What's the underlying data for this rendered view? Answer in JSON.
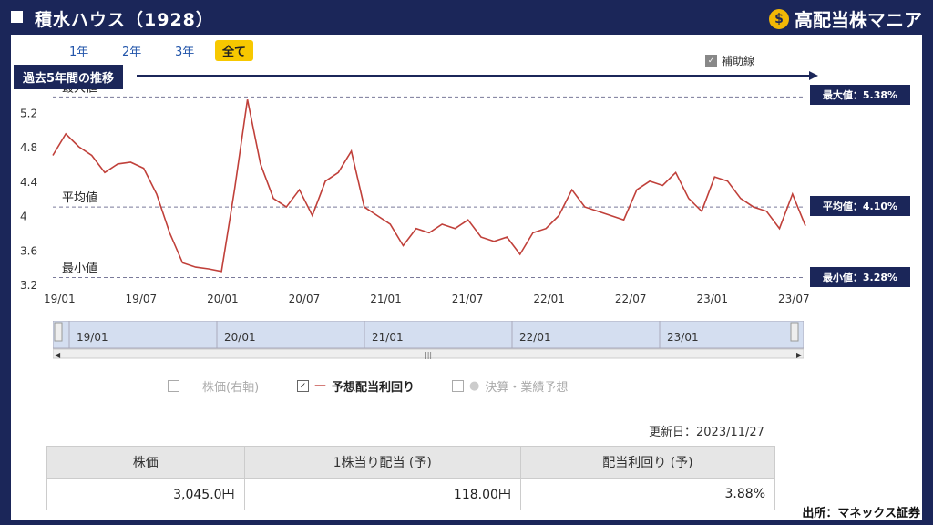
{
  "header": {
    "title": "積水ハウス（1928）",
    "brand": "高配当株マニア",
    "brand_icon": "money-bag-icon"
  },
  "tabs": [
    {
      "label": "1年"
    },
    {
      "label": "2年"
    },
    {
      "label": "3年"
    },
    {
      "label": "全て",
      "active": true
    }
  ],
  "aux_line": {
    "label": "補助線",
    "checked": true
  },
  "period_badge": "過去5年間の推移",
  "ref_lines": {
    "max_label": "最大値",
    "avg_label": "平均値",
    "min_label": "最小値",
    "max_tag": "最大値：5.38%",
    "avg_tag": "平均値：4.10%",
    "min_tag": "最小値：3.28%"
  },
  "navigator": {
    "labels": [
      "19/01",
      "20/01",
      "21/01",
      "22/01",
      "23/01"
    ]
  },
  "legend": [
    {
      "label": "株価(右軸)",
      "checked": false,
      "active": false
    },
    {
      "label": "予想配当利回り",
      "checked": true,
      "active": true
    },
    {
      "label": "決算・業績予想",
      "checked": false,
      "active": false
    }
  ],
  "updated": "更新日：2023/11/27",
  "table": {
    "headers": [
      "株価",
      "1株当り配当 (予)",
      "配当利回り (予)"
    ],
    "values": [
      "3,045.0円",
      "118.00円",
      "3.88%"
    ]
  },
  "source": "出所：マネックス証券",
  "colors": {
    "line": "#c0403a",
    "navy": "#1b2659",
    "accent": "#f7c800"
  },
  "chart_data": {
    "type": "line",
    "series": [
      {
        "name": "予想配当利回り",
        "x": [
          "2019-01",
          "2019-02",
          "2019-03",
          "2019-04",
          "2019-05",
          "2019-06",
          "2019-07",
          "2019-08",
          "2019-09",
          "2019-10",
          "2019-11",
          "2019-12",
          "2020-01",
          "2020-02",
          "2020-03",
          "2020-04",
          "2020-05",
          "2020-06",
          "2020-07",
          "2020-08",
          "2020-09",
          "2020-10",
          "2020-11",
          "2020-12",
          "2021-01",
          "2021-02",
          "2021-03",
          "2021-04",
          "2021-05",
          "2021-06",
          "2021-07",
          "2021-08",
          "2021-09",
          "2021-10",
          "2021-11",
          "2021-12",
          "2022-01",
          "2022-02",
          "2022-03",
          "2022-04",
          "2022-05",
          "2022-06",
          "2022-07",
          "2022-08",
          "2022-09",
          "2022-10",
          "2022-11",
          "2022-12",
          "2023-01",
          "2023-02",
          "2023-03",
          "2023-04",
          "2023-05",
          "2023-06",
          "2023-07",
          "2023-08",
          "2023-09",
          "2023-10",
          "2023-11"
        ],
        "values": [
          4.7,
          4.95,
          4.8,
          4.7,
          4.5,
          4.6,
          4.62,
          4.55,
          4.25,
          3.8,
          3.45,
          3.4,
          3.38,
          3.35,
          4.3,
          5.35,
          4.6,
          4.2,
          4.1,
          4.3,
          4.0,
          4.4,
          4.5,
          4.75,
          4.1,
          4.0,
          3.9,
          3.65,
          3.85,
          3.8,
          3.9,
          3.85,
          3.95,
          3.75,
          3.7,
          3.75,
          3.55,
          3.8,
          3.85,
          4.0,
          4.3,
          4.1,
          4.05,
          4.0,
          3.95,
          4.3,
          4.4,
          4.35,
          4.5,
          4.2,
          4.05,
          4.45,
          4.4,
          4.2,
          4.1,
          4.05,
          3.85,
          4.25,
          3.88
        ]
      }
    ],
    "ylim": [
      3.2,
      5.5
    ],
    "yticks": [
      "3.2",
      "3.6",
      "4",
      "4.4",
      "4.8",
      "5.2"
    ],
    "xticks": [
      "19/01",
      "19/07",
      "20/01",
      "20/07",
      "21/01",
      "21/07",
      "22/01",
      "22/07",
      "23/01",
      "23/07"
    ],
    "ref": {
      "max": 5.38,
      "avg": 4.1,
      "min": 3.28
    }
  }
}
